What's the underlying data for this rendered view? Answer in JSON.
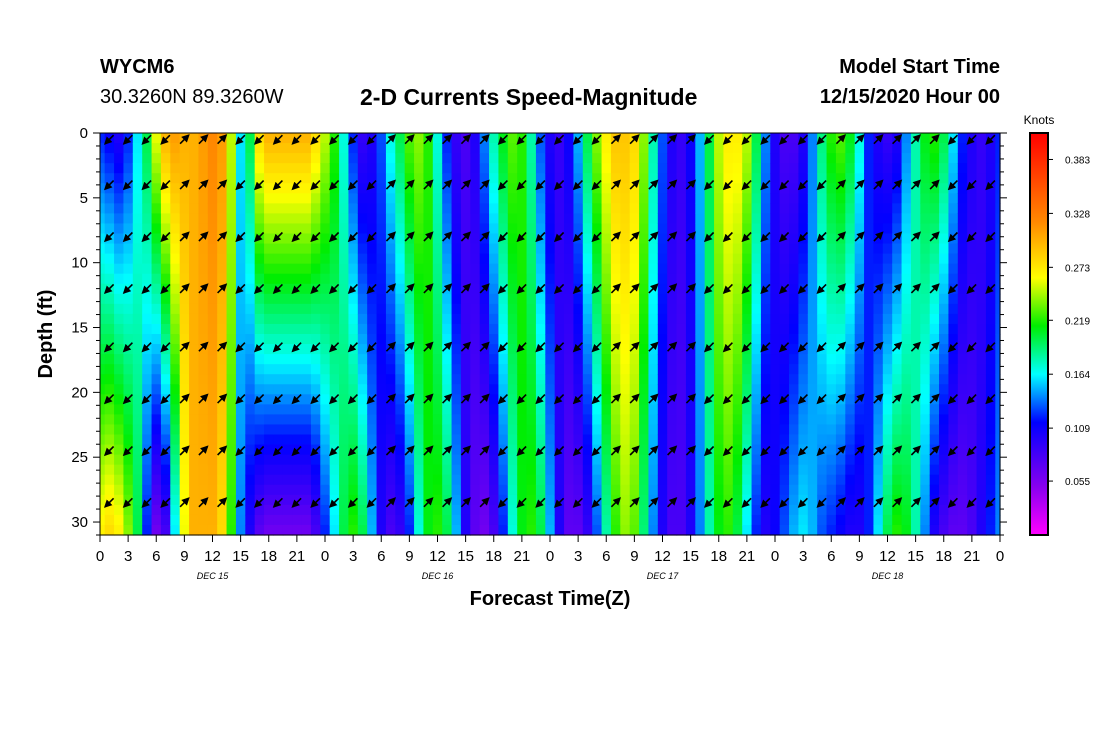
{
  "header": {
    "station": "WYCM6",
    "coords": "30.3260N 89.3260W",
    "title": "2-D Currents Speed-Magnitude",
    "model_start_label": "Model Start Time",
    "model_start_value": "12/15/2020 Hour 00"
  },
  "chart_data": {
    "type": "heatmap",
    "title": "2-D Currents Speed-Magnitude",
    "xlabel": "Forecast Time(Z)",
    "ylabel": "Depth (ft)",
    "x_hours": [
      0,
      96
    ],
    "x_tick_labels": [
      "0",
      "3",
      "6",
      "9",
      "12",
      "15",
      "18",
      "21",
      "0",
      "3",
      "6",
      "9",
      "12",
      "15",
      "18",
      "21",
      "0",
      "3",
      "6",
      "9",
      "12",
      "15",
      "18",
      "21",
      "0",
      "3",
      "6",
      "9",
      "12",
      "15",
      "18",
      "21",
      "0"
    ],
    "date_labels": [
      {
        "label": "DEC 15",
        "hour": 12
      },
      {
        "label": "DEC 16",
        "hour": 36
      },
      {
        "label": "DEC 17",
        "hour": 60
      },
      {
        "label": "DEC 18",
        "hour": 84
      }
    ],
    "y_ticks": [
      0,
      5,
      10,
      15,
      20,
      25,
      30
    ],
    "ylim": [
      0,
      31
    ],
    "y_inverted": true,
    "colorbar": {
      "unit": "Knots",
      "min": 0.0,
      "max": 0.41,
      "tick_labels": [
        "0.383",
        "0.328",
        "0.273",
        "0.219",
        "0.164",
        "0.109",
        "0.055"
      ],
      "tick_values": [
        0.383,
        0.328,
        0.273,
        0.219,
        0.164,
        0.109,
        0.055
      ]
    },
    "speed_profile_hours": [
      0,
      1,
      2,
      3,
      4,
      5,
      6,
      7,
      8,
      9,
      10,
      11,
      12,
      13,
      14,
      15,
      16,
      17,
      18,
      19,
      20,
      21,
      22,
      23,
      24,
      25,
      26,
      27,
      28,
      29,
      30,
      31,
      32,
      33,
      34,
      35,
      36,
      37,
      38,
      39,
      40,
      41,
      42,
      43,
      44,
      45,
      46,
      47,
      48,
      49,
      50,
      51,
      52,
      53,
      54,
      55,
      56,
      57,
      58,
      59,
      60,
      61,
      62,
      63,
      64,
      65,
      66,
      67,
      68,
      69,
      70,
      71,
      72,
      73,
      74,
      75,
      76,
      77,
      78,
      79,
      80,
      81,
      82,
      83,
      84,
      85,
      86,
      87,
      88,
      89,
      90,
      91,
      92,
      93,
      94,
      95,
      96
    ],
    "speed_surface": [
      0.12,
      0.11,
      0.1,
      0.12,
      0.16,
      0.2,
      0.26,
      0.3,
      0.31,
      0.3,
      0.3,
      0.31,
      0.32,
      0.31,
      0.25,
      0.16,
      0.2,
      0.28,
      0.3,
      0.3,
      0.3,
      0.3,
      0.3,
      0.28,
      0.25,
      0.22,
      0.17,
      0.12,
      0.09,
      0.1,
      0.13,
      0.17,
      0.2,
      0.23,
      0.24,
      0.22,
      0.17,
      0.12,
      0.09,
      0.08,
      0.1,
      0.14,
      0.18,
      0.21,
      0.23,
      0.22,
      0.18,
      0.13,
      0.1,
      0.09,
      0.11,
      0.15,
      0.2,
      0.24,
      0.27,
      0.29,
      0.29,
      0.28,
      0.24,
      0.18,
      0.13,
      0.1,
      0.09,
      0.11,
      0.15,
      0.2,
      0.25,
      0.27,
      0.27,
      0.25,
      0.2,
      0.14,
      0.1,
      0.08,
      0.08,
      0.1,
      0.14,
      0.19,
      0.22,
      0.23,
      0.21,
      0.17,
      0.12,
      0.1,
      0.09,
      0.1,
      0.14,
      0.18,
      0.21,
      0.22,
      0.2,
      0.16,
      0.12,
      0.1,
      0.09,
      0.1,
      0.12
    ],
    "speed_bottom": [
      0.27,
      0.28,
      0.27,
      0.24,
      0.2,
      0.12,
      0.06,
      0.08,
      0.16,
      0.26,
      0.3,
      0.3,
      0.3,
      0.28,
      0.22,
      0.14,
      0.1,
      0.07,
      0.06,
      0.06,
      0.06,
      0.06,
      0.06,
      0.08,
      0.12,
      0.16,
      0.2,
      0.22,
      0.2,
      0.15,
      0.1,
      0.08,
      0.09,
      0.12,
      0.17,
      0.21,
      0.22,
      0.2,
      0.15,
      0.1,
      0.07,
      0.06,
      0.08,
      0.12,
      0.17,
      0.21,
      0.22,
      0.2,
      0.15,
      0.1,
      0.07,
      0.07,
      0.09,
      0.13,
      0.18,
      0.22,
      0.24,
      0.23,
      0.19,
      0.14,
      0.1,
      0.08,
      0.08,
      0.1,
      0.14,
      0.18,
      0.21,
      0.22,
      0.2,
      0.16,
      0.12,
      0.1,
      0.11,
      0.13,
      0.15,
      0.16,
      0.15,
      0.13,
      0.12,
      0.11,
      0.1,
      0.1,
      0.12,
      0.16,
      0.2,
      0.22,
      0.21,
      0.18,
      0.14,
      0.1,
      0.08,
      0.07,
      0.07,
      0.08,
      0.1,
      0.12,
      0.14
    ],
    "arrow_depths_ft": [
      0.5,
      4,
      8,
      12,
      16.5,
      20.5,
      24.5,
      28.5
    ],
    "arrow_directions": [
      {
        "hour_start": 0,
        "hour_end": 8,
        "direction": "southwest"
      },
      {
        "hour_start": 8,
        "hour_end": 15,
        "direction": "northeast"
      },
      {
        "hour_start": 15,
        "hour_end": 30,
        "direction": "southwest"
      },
      {
        "hour_start": 30,
        "hour_end": 37,
        "direction": "northeast"
      },
      {
        "hour_start": 37,
        "hour_end": 42,
        "direction": "northeast"
      },
      {
        "hour_start": 42,
        "hour_end": 54,
        "direction": "southwest"
      },
      {
        "hour_start": 54,
        "hour_end": 64,
        "direction": "northeast"
      },
      {
        "hour_start": 64,
        "hour_end": 78,
        "direction": "southwest"
      },
      {
        "hour_start": 78,
        "hour_end": 90,
        "direction": "northeast"
      },
      {
        "hour_start": 90,
        "hour_end": 96,
        "direction": "southwest"
      }
    ]
  }
}
